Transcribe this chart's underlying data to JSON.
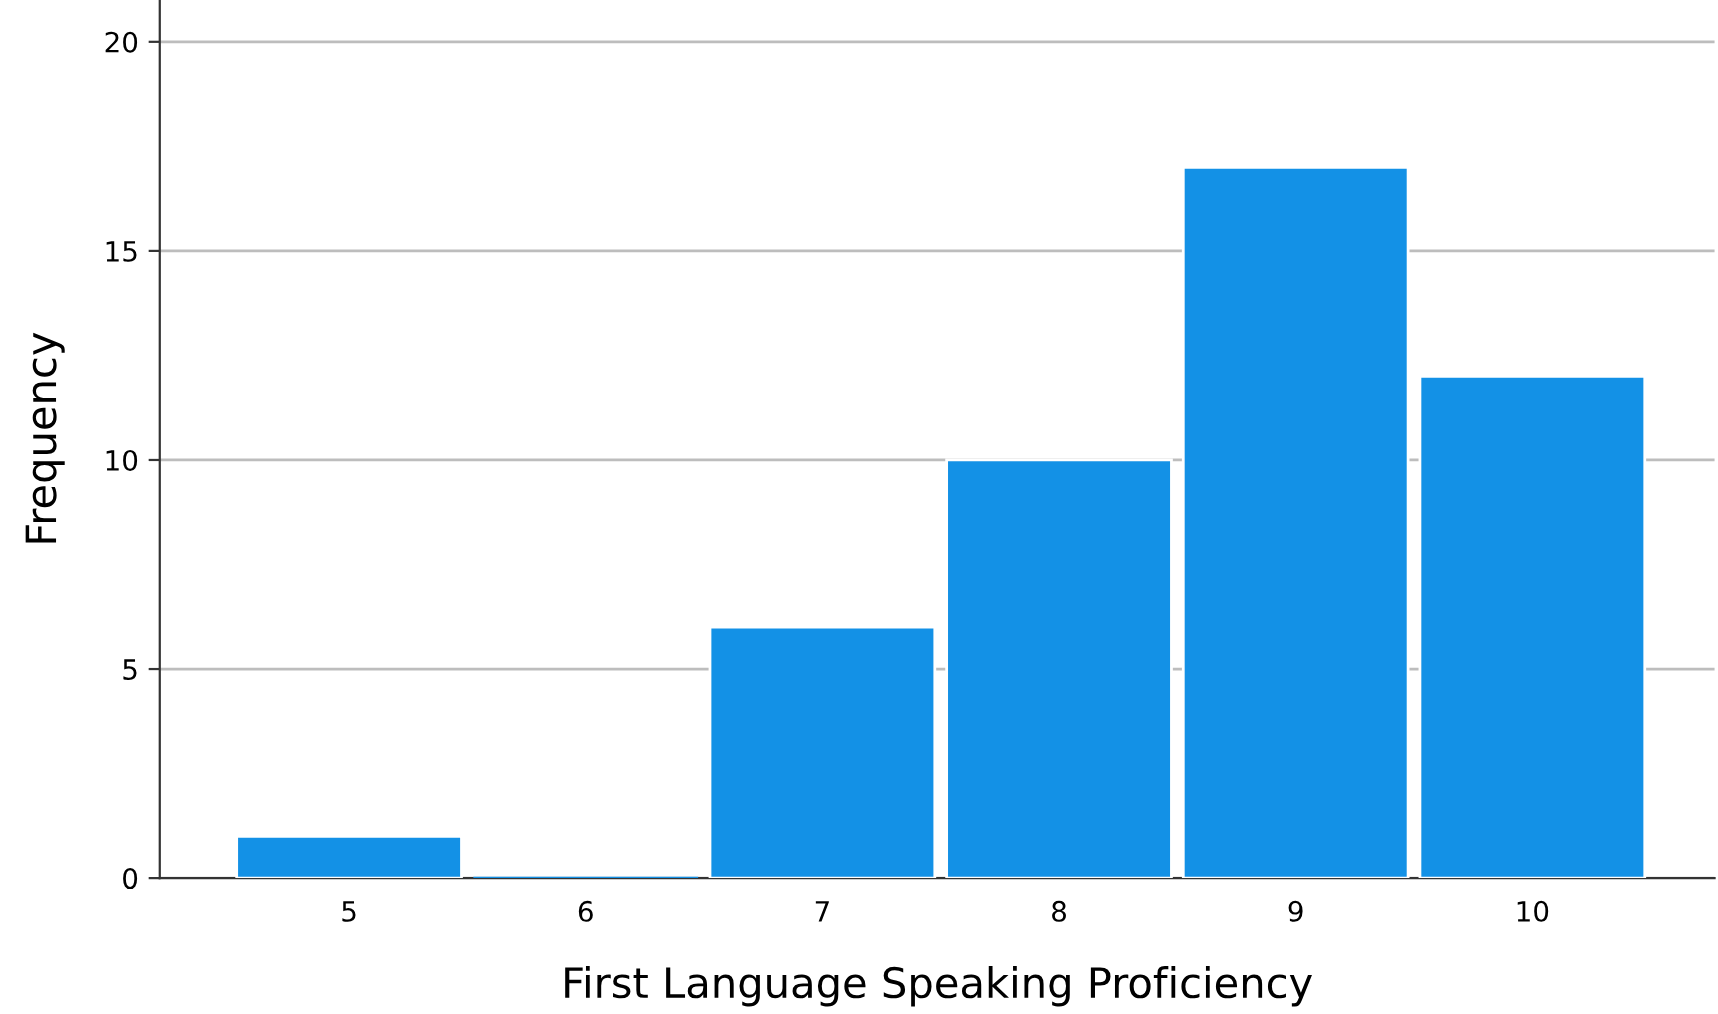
{
  "chart_data": {
    "type": "bar",
    "xlabel": "First Language Speaking Proficiency",
    "ylabel": "Frequency",
    "categories": [
      "5",
      "6",
      "7",
      "8",
      "9",
      "10"
    ],
    "values": [
      1,
      0,
      6,
      10,
      17,
      12
    ],
    "color": "#1391e6",
    "ylim": [
      0,
      21
    ],
    "yticks": [
      0,
      5,
      10,
      15,
      20
    ],
    "grid": "y",
    "legend": false
  }
}
